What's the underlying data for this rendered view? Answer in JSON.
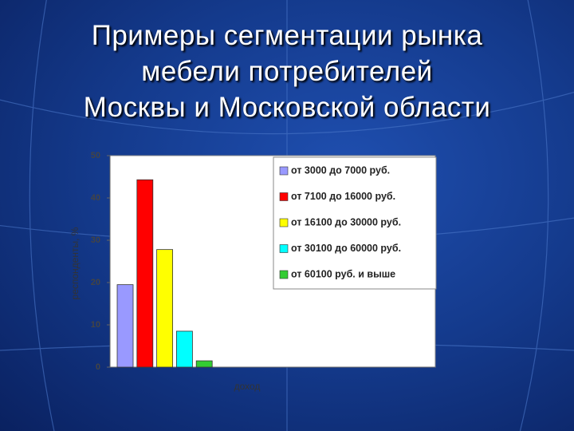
{
  "chart_data": {
    "type": "bar",
    "title": "Примеры сегментации рынка\nмебели потребителей\nМосквы и Московской области",
    "y_label": "респонденты, %",
    "x_label": "доход",
    "categories": [
      null
    ],
    "series": [
      {
        "name": "от 3000 до 7000 руб.",
        "color": "#9999ff",
        "values": [
          19.5
        ]
      },
      {
        "name": "от 7100 до 16000 руб.",
        "color": "#ff0000",
        "values": [
          44.3
        ]
      },
      {
        "name": "от 16100 до 30000 руб.",
        "color": "#ffff00",
        "values": [
          27.8
        ]
      },
      {
        "name": "от 30100 до 60000 руб.",
        "color": "#00ffff",
        "values": [
          8.5
        ]
      },
      {
        "name": "от 60100 руб. и выше",
        "color": "#33cc33",
        "values": [
          1.5
        ]
      }
    ],
    "ylim": [
      0,
      50
    ],
    "yticks": [
      0,
      10,
      20,
      30,
      40,
      50
    ],
    "legend": "top-right"
  }
}
